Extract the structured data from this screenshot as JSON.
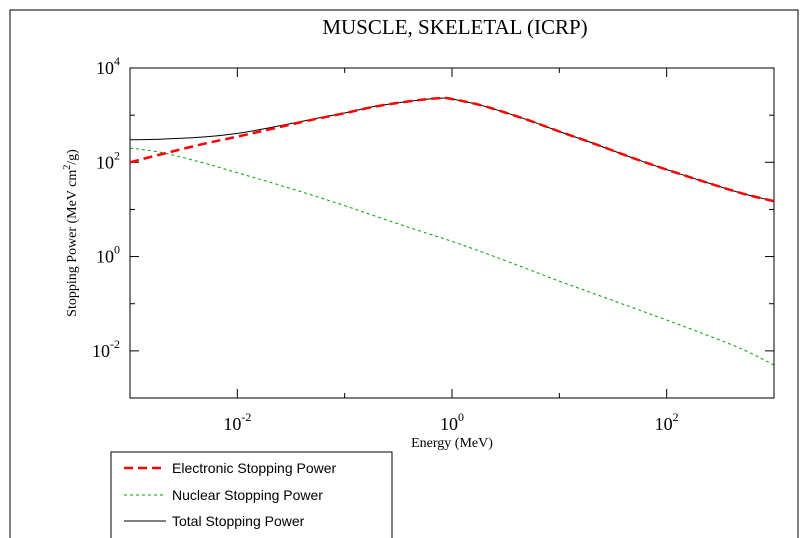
{
  "chart_data": {
    "type": "line",
    "title": "MUSCLE, SKELETAL (ICRP)",
    "xlabel": "Energy (MeV)",
    "ylabel": "Stopping Power (MeV cm²/g)",
    "ylabel_parts": {
      "pre": "Stopping Power (MeV cm",
      "sup": "2",
      "post": "/g)"
    },
    "x_scale": "log",
    "y_scale": "log",
    "xlim": [
      0.001,
      1000
    ],
    "ylim": [
      0.001,
      10000
    ],
    "x_ticks": [
      {
        "value": 0.01,
        "base": "10",
        "exp": "-2"
      },
      {
        "value": 1,
        "base": "10",
        "exp": "0"
      },
      {
        "value": 100,
        "base": "10",
        "exp": "2"
      }
    ],
    "y_ticks": [
      {
        "value": 0.01,
        "base": "10",
        "exp": "-2"
      },
      {
        "value": 1,
        "base": "10",
        "exp": "0"
      },
      {
        "value": 100,
        "base": "10",
        "exp": "2"
      },
      {
        "value": 10000,
        "base": "10",
        "exp": "4"
      }
    ],
    "grid": false,
    "legend_position": "bottom-left-outside",
    "series": [
      {
        "name": "Electronic Stopping Power",
        "color": "#ff0000",
        "dash": "long-dash",
        "x": [
          0.001,
          0.002,
          0.005,
          0.01,
          0.02,
          0.05,
          0.1,
          0.2,
          0.5,
          0.8,
          1,
          2,
          5,
          10,
          20,
          50,
          100,
          200,
          500,
          1000
        ],
        "y": [
          100,
          150,
          250,
          350,
          500,
          800,
          1100,
          1550,
          2100,
          2300,
          2200,
          1550,
          800,
          450,
          260,
          120,
          70,
          42,
          22,
          15
        ]
      },
      {
        "name": "Nuclear Stopping Power",
        "color": "#00a000",
        "dash": "short-dash",
        "x": [
          0.001,
          0.002,
          0.005,
          0.01,
          0.02,
          0.05,
          0.1,
          0.2,
          0.5,
          1,
          2,
          5,
          10,
          20,
          50,
          100,
          200,
          500,
          1000
        ],
        "y": [
          200,
          160,
          95,
          60,
          38,
          20,
          12,
          7,
          3.5,
          2.1,
          1.2,
          0.55,
          0.3,
          0.17,
          0.08,
          0.045,
          0.025,
          0.011,
          0.005
        ]
      },
      {
        "name": "Total Stopping Power",
        "color": "#000000",
        "dash": "solid",
        "x": [
          0.001,
          0.002,
          0.005,
          0.01,
          0.02,
          0.05,
          0.1,
          0.2,
          0.5,
          0.8,
          1,
          2,
          5,
          10,
          20,
          50,
          100,
          200,
          500,
          1000
        ],
        "y": [
          300,
          310,
          345,
          410,
          540,
          820,
          1110,
          1560,
          2100,
          2300,
          2200,
          1550,
          800,
          450,
          260,
          120,
          70,
          42,
          22,
          15
        ]
      }
    ]
  }
}
